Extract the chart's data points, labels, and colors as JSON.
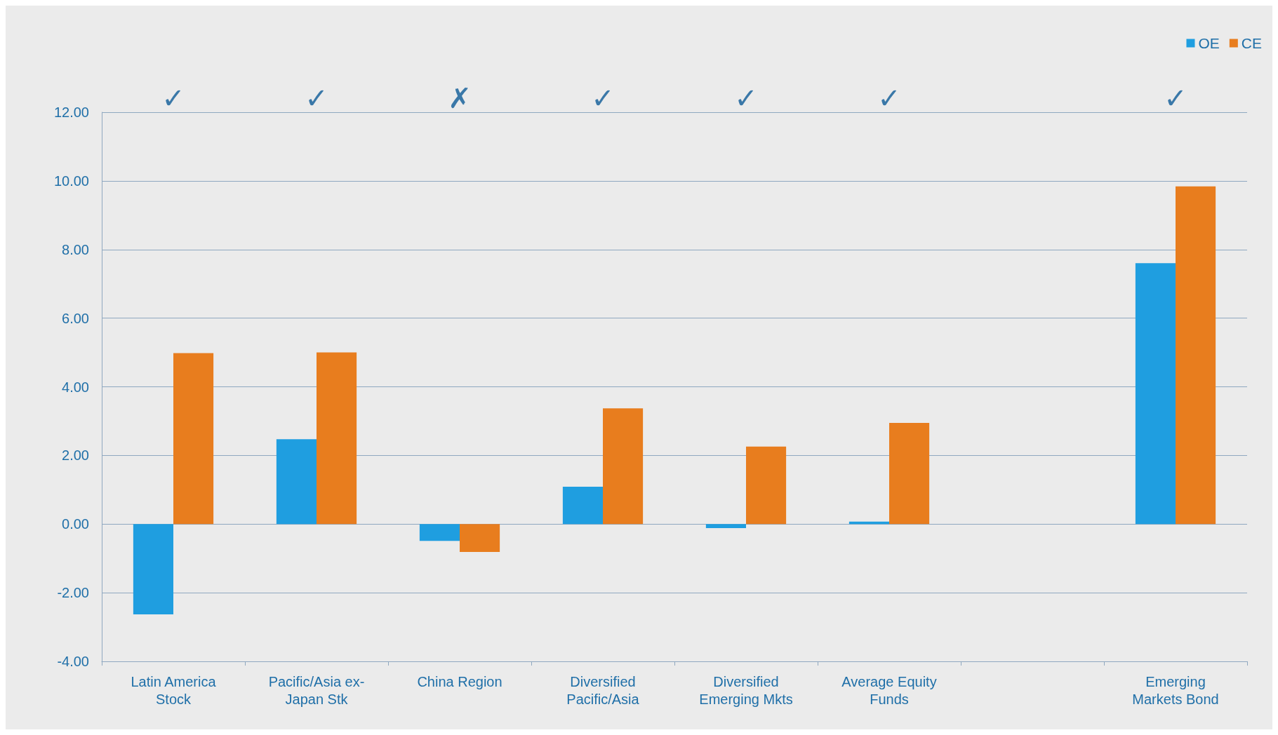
{
  "chart_data": {
    "type": "bar",
    "categories": [
      "Latin America\nStock",
      "Pacific/Asia ex-\nJapan Stk",
      "China Region",
      "Diversified\nPacific/Asia",
      "Diversified\nEmerging Mkts",
      "Average Equity\nFunds",
      null,
      "Emerging\nMarkets Bond"
    ],
    "series": [
      {
        "name": "OE",
        "color": "#1f9ee0",
        "values": [
          -2.63,
          2.47,
          -0.49,
          1.09,
          -0.12,
          0.07,
          null,
          7.6
        ]
      },
      {
        "name": "CE",
        "color": "#e87d1e",
        "values": [
          4.98,
          5.0,
          -0.81,
          3.37,
          2.26,
          2.95,
          null,
          9.84
        ]
      }
    ],
    "ylim": [
      -4,
      12
    ],
    "yticks": [
      {
        "value": -4,
        "label": "-4.00"
      },
      {
        "value": -2,
        "label": "-2.00"
      },
      {
        "value": 0,
        "label": "0.00"
      },
      {
        "value": 2,
        "label": "2.00"
      },
      {
        "value": 4,
        "label": "4.00"
      },
      {
        "value": 6,
        "label": "6.00"
      },
      {
        "value": 8,
        "label": "8.00"
      },
      {
        "value": 10,
        "label": "10.00"
      },
      {
        "value": 12,
        "label": "12.00"
      }
    ],
    "grid": "y",
    "legend": "top right",
    "annotations": [
      "✓",
      "✓",
      "✗",
      "✓",
      "✓",
      "✓",
      "✓"
    ]
  }
}
